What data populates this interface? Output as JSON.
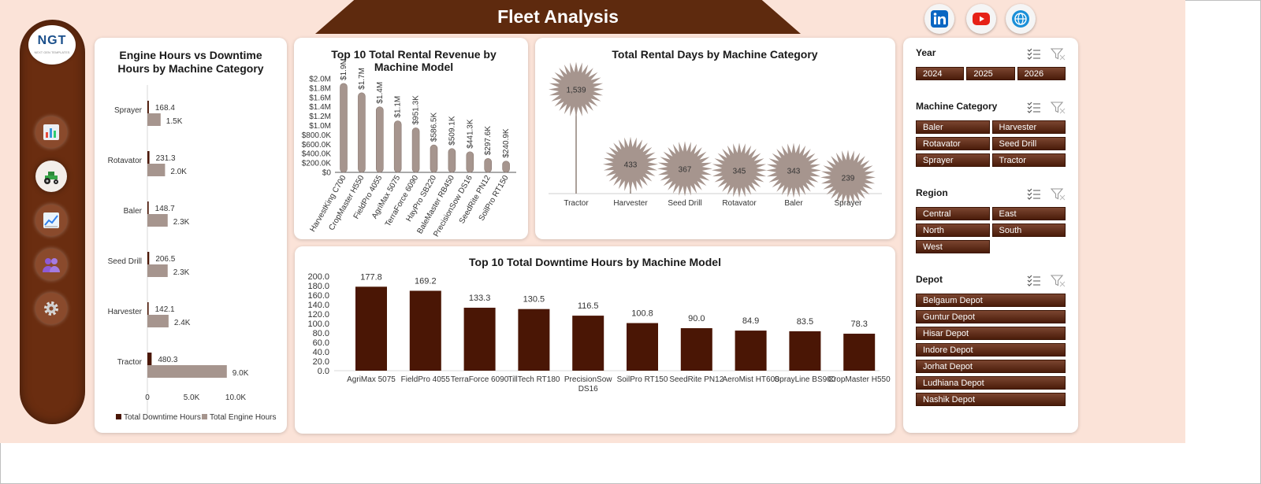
{
  "header": {
    "title": "Fleet Analysis",
    "social": [
      {
        "name": "linkedin",
        "icon": "linkedin-icon",
        "color": "#0a66c2"
      },
      {
        "name": "youtube",
        "icon": "youtube-icon",
        "color": "#e62117"
      },
      {
        "name": "website",
        "icon": "globe-icon",
        "color": "#1a8fd8"
      }
    ]
  },
  "sidebar": {
    "logo_text": "NGT",
    "logo_subtext": "NEXT GEN TEMPLATES",
    "items": [
      {
        "icon": "bar-chart-icon",
        "active": false
      },
      {
        "icon": "tractor-icon",
        "active": true
      },
      {
        "icon": "line-chart-icon",
        "active": false
      },
      {
        "icon": "users-icon",
        "active": false
      },
      {
        "icon": "gear-icon",
        "active": false
      }
    ]
  },
  "colors": {
    "dark_bar": "#4a1605",
    "light_bar": "#a6958e",
    "chip": "#5e2a12",
    "sidebar": "#6a2d10",
    "background": "#fbe3d8"
  },
  "charts": {
    "engine": {
      "title_line1": "Engine Hours vs Downtime",
      "title_line2": "Hours by Machine Category",
      "legend": [
        "Total Downtime Hours",
        "Total Engine Hours"
      ],
      "xticks": [
        "0",
        "5.0K",
        "10.0K"
      ],
      "value_labels": {
        "downtime": [
          "168.4",
          "231.3",
          "148.7",
          "206.5",
          "142.1",
          "480.3"
        ],
        "engine": [
          "1.5K",
          "2.0K",
          "2.3K",
          "2.3K",
          "2.4K",
          "9.0K"
        ]
      }
    },
    "revenue": {
      "title_line1": "Top 10 Total Rental Revenue by",
      "title_line2": "Machine Model",
      "yticks": [
        "$0",
        "$200.0K",
        "$400.0K",
        "$600.0K",
        "$800.0K",
        "$1.0M",
        "$1.2M",
        "$1.4M",
        "$1.6M",
        "$1.8M",
        "$2.0M"
      ],
      "value_labels": [
        "$1.9M",
        "$1.7M",
        "$1.4M",
        "$1.1M",
        "$951.3K",
        "$586.5K",
        "$509.1K",
        "$441.3K",
        "$297.6K",
        "$240.9K"
      ]
    },
    "rental_days": {
      "title": "Total Rental Days by Machine Category",
      "value_labels": [
        "1,539",
        "433",
        "367",
        "345",
        "343",
        "239"
      ]
    },
    "downtime": {
      "title": "Top 10 Total Downtime Hours by Machine Model",
      "yticks": [
        "0.0",
        "20.0",
        "40.0",
        "60.0",
        "80.0",
        "100.0",
        "120.0",
        "140.0",
        "160.0",
        "180.0",
        "200.0"
      ],
      "value_labels": [
        "177.8",
        "169.2",
        "133.3",
        "130.5",
        "116.5",
        "100.8",
        "90.0",
        "84.9",
        "83.5",
        "78.3"
      ],
      "category_lines": [
        [
          "AgriMax 5075"
        ],
        [
          "FieldPro 4055"
        ],
        [
          "TerraForce 6090"
        ],
        [
          "TillTech RT180"
        ],
        [
          "PrecisionSow",
          "DS16"
        ],
        [
          "SoilPro RT150"
        ],
        [
          "SeedRite PN12"
        ],
        [
          "AeroMist HT600"
        ],
        [
          "SprayLine BS900"
        ],
        [
          "CropMaster H550"
        ]
      ]
    }
  },
  "chart_data": [
    {
      "type": "bar",
      "orientation": "horizontal",
      "title": "Engine Hours vs Downtime Hours by Machine Category",
      "categories": [
        "Sprayer",
        "Rotavator",
        "Baler",
        "Seed Drill",
        "Harvester",
        "Tractor"
      ],
      "series": [
        {
          "name": "Total Downtime Hours",
          "values": [
            168.4,
            231.3,
            148.7,
            206.5,
            142.1,
            480.3
          ]
        },
        {
          "name": "Total Engine Hours",
          "values": [
            1500,
            2000,
            2300,
            2300,
            2400,
            9000
          ]
        }
      ],
      "xlim": [
        0,
        10000
      ],
      "legend": "bottom"
    },
    {
      "type": "bar",
      "title": "Top 10 Total Rental Revenue by Machine Model",
      "categories": [
        "HarvestKing C700",
        "CropMaster H550",
        "FieldPro 4055",
        "AgriMax 5075",
        "TerraForce 6090",
        "HayPro SB220",
        "BaleMaster RB450",
        "PrecisionSow DS16",
        "SeedRite PN12",
        "SoilPro RT150"
      ],
      "values": [
        1900000,
        1700000,
        1400000,
        1100000,
        951300,
        586500,
        509100,
        441300,
        297600,
        240900
      ],
      "ylim": [
        0,
        2000000
      ]
    },
    {
      "type": "scatter",
      "title": "Total Rental Days by Machine Category",
      "categories": [
        "Tractor",
        "Harvester",
        "Seed Drill",
        "Rotavator",
        "Baler",
        "Sprayer"
      ],
      "values": [
        1539,
        433,
        367,
        345,
        343,
        239
      ]
    },
    {
      "type": "bar",
      "title": "Top 10 Total Downtime Hours by Machine Model",
      "categories": [
        "AgriMax 5075",
        "FieldPro 4055",
        "TerraForce 6090",
        "TillTech RT180",
        "PrecisionSow DS16",
        "SoilPro RT150",
        "SeedRite PN12",
        "AeroMist HT600",
        "SprayLine BS900",
        "CropMaster H550"
      ],
      "values": [
        177.8,
        169.2,
        133.3,
        130.5,
        116.5,
        100.8,
        90.0,
        84.9,
        83.5,
        78.3
      ],
      "ylim": [
        0,
        200
      ]
    }
  ],
  "slicers": {
    "year": {
      "title": "Year",
      "items": [
        "2024",
        "2025",
        "2026"
      ]
    },
    "machine_category": {
      "title": "Machine Category",
      "items": [
        "Baler",
        "Harvester",
        "Rotavator",
        "Seed Drill",
        "Sprayer",
        "Tractor"
      ]
    },
    "region": {
      "title": "Region",
      "items": [
        "Central",
        "East",
        "North",
        "South",
        "West"
      ]
    },
    "depot": {
      "title": "Depot",
      "items": [
        "Belgaum Depot",
        "Guntur Depot",
        "Hisar Depot",
        "Indore Depot",
        "Jorhat Depot",
        "Ludhiana Depot",
        "Nashik Depot"
      ]
    }
  }
}
